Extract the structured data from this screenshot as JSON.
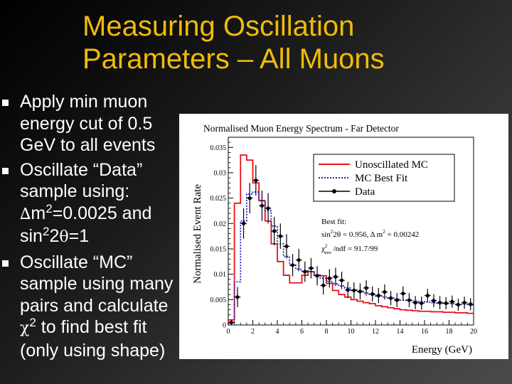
{
  "slide": {
    "title_line1": "Measuring Oscillation",
    "title_line2": "Parameters – All Muons"
  },
  "bullets": [
    {
      "text": "Apply min muon energy cut of 0.5 GeV to all events"
    },
    {
      "line1": "Oscillate “Data” sample using:",
      "delta": "∆",
      "m2_a": "m",
      "m2_sup": "2",
      "m2_b": "=0.0025 and",
      "sin_a": "sin",
      "sin_sup": "2",
      "sin_b": "2",
      "theta": "θ",
      "sin_c": "=1"
    },
    {
      "line1": "Oscillate “MC” sample using many pairs and calculate",
      "chi": "χ",
      "chi_sup": "2",
      "line2": " to find best fit (only using shape)"
    }
  ],
  "colors": {
    "title": "#f0bb0a",
    "text": "#ffffff",
    "unoscillated": "#e8101a",
    "best_fit": "#2424c8",
    "data": "#000000"
  },
  "chart_data": {
    "type": "line",
    "title": "Normalised Muon Energy Spectrum - Far Detector",
    "xlabel": "Energy (GeV)",
    "ylabel": "Normalised Event Rate",
    "xlim": [
      0,
      20
    ],
    "ylim": [
      0,
      0.037
    ],
    "xticks": [
      "0",
      "2",
      "4",
      "6",
      "8",
      "10",
      "12",
      "14",
      "16",
      "18",
      "20"
    ],
    "yticks": [
      "0",
      "0.005",
      "0.01",
      "0.015",
      "0.02",
      "0.025",
      "0.03",
      "0.035"
    ],
    "grid": false,
    "legend_position": "top-right",
    "x": [
      0.25,
      0.75,
      1.25,
      1.75,
      2.25,
      2.75,
      3.25,
      3.75,
      4.25,
      4.75,
      5.25,
      5.75,
      6.25,
      6.75,
      7.25,
      7.75,
      8.25,
      8.75,
      9.25,
      9.75,
      10.25,
      10.75,
      11.25,
      11.75,
      12.25,
      12.75,
      13.25,
      13.75,
      14.25,
      14.75,
      15.25,
      15.75,
      16.25,
      16.75,
      17.25,
      17.75,
      18.25,
      18.75,
      19.25,
      19.75
    ],
    "series": [
      {
        "name": "Unoscillated MC",
        "style": "solid",
        "values": [
          0.001,
          0.024,
          0.0335,
          0.0325,
          0.028,
          0.0245,
          0.0205,
          0.016,
          0.0125,
          0.0098,
          0.0083,
          0.0083,
          0.0098,
          0.0105,
          0.0098,
          0.0097,
          0.0082,
          0.0068,
          0.006,
          0.0055,
          0.005,
          0.0047,
          0.0044,
          0.0042,
          0.0038,
          0.0036,
          0.0034,
          0.0032,
          0.003,
          0.0029,
          0.0028,
          0.0027,
          0.0027,
          0.0026,
          0.0026,
          0.0025,
          0.0025,
          0.0024,
          0.0024,
          0.0023
        ]
      },
      {
        "name": "MC Best Fit",
        "style": "dotted",
        "values": [
          0.0004,
          0.0085,
          0.0205,
          0.0258,
          0.0262,
          0.0245,
          0.0225,
          0.0195,
          0.016,
          0.0135,
          0.0118,
          0.011,
          0.0107,
          0.0105,
          0.0098,
          0.0092,
          0.0086,
          0.0081,
          0.0077,
          0.0073,
          0.0069,
          0.0066,
          0.0063,
          0.006,
          0.0057,
          0.0055,
          0.0053,
          0.0051,
          0.0049,
          0.0048,
          0.0047,
          0.0046,
          0.0045,
          0.0044,
          0.0043,
          0.0042,
          0.0042,
          0.0041,
          0.0041,
          0.004
        ]
      },
      {
        "name": "Data",
        "style": "points-with-errors",
        "values": [
          0.0005,
          0.0055,
          0.02,
          0.025,
          0.0285,
          0.0235,
          0.023,
          0.0185,
          0.0175,
          0.0155,
          0.0118,
          0.0128,
          0.0105,
          0.0112,
          0.0097,
          0.0078,
          0.0092,
          0.0095,
          0.0088,
          0.0069,
          0.0068,
          0.0066,
          0.0073,
          0.0061,
          0.0058,
          0.0065,
          0.0053,
          0.0049,
          0.0062,
          0.0049,
          0.0044,
          0.0043,
          0.0058,
          0.0048,
          0.0044,
          0.0043,
          0.0046,
          0.004,
          0.0044,
          0.0041
        ],
        "errors": [
          0.0005,
          0.002,
          0.003,
          0.003,
          0.003,
          0.003,
          0.003,
          0.0028,
          0.0025,
          0.0024,
          0.0022,
          0.0022,
          0.002,
          0.002,
          0.0019,
          0.0018,
          0.0018,
          0.0018,
          0.0017,
          0.0016,
          0.0016,
          0.0016,
          0.0015,
          0.0015,
          0.0015,
          0.0015,
          0.0014,
          0.0014,
          0.0014,
          0.0014,
          0.0013,
          0.0013,
          0.0013,
          0.0013,
          0.0013,
          0.0012,
          0.0012,
          0.0012,
          0.0012,
          0.0012
        ]
      }
    ],
    "fit_box": {
      "line1": "Best fit:",
      "line2_pre": "sin",
      "line2_sup": "2",
      "line2_mid": "2θ = 0.956, Δ m",
      "line2_sup2": "2",
      "line2_end": " = 0.00242",
      "line3_pre": "χ",
      "line3_sup": "2",
      "line3_sub": "min",
      "line3_end": " /ndf = 91.7/99"
    }
  }
}
